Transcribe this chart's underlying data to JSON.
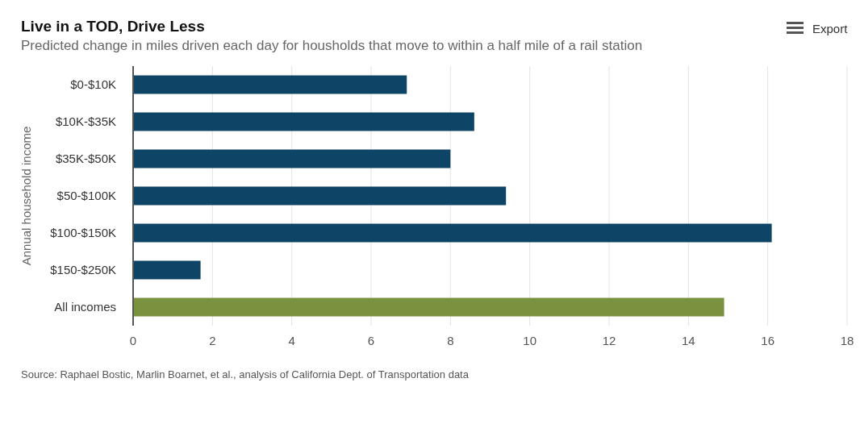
{
  "chart_data": {
    "type": "bar",
    "orientation": "horizontal",
    "title": "Live in a TOD, Drive Less",
    "subtitle": "Predicted change in miles driven each day for housholds that move to within a half mile of a rail station",
    "ylabel": "Annual household income",
    "categories": [
      "$0-$10K",
      "$10K-$35K",
      "$35K-$50K",
      "$50-$100K",
      "$100-$150K",
      "$150-$250K",
      "All incomes"
    ],
    "values": [
      6.9,
      8.6,
      8.0,
      9.4,
      16.1,
      1.7,
      14.9
    ],
    "colors": [
      "#0e4466",
      "#0e4466",
      "#0e4466",
      "#0e4466",
      "#0e4466",
      "#0e4466",
      "#7a9140"
    ],
    "xlim": [
      0,
      18
    ],
    "xticks": [
      0,
      2,
      4,
      6,
      8,
      10,
      12,
      14,
      16,
      18
    ],
    "grid": "x",
    "annotations": [
      "Source: Raphael Bostic, Marlin Boarnet, et al., analysis of California Dept. of Transportation data",
      "Export"
    ]
  }
}
